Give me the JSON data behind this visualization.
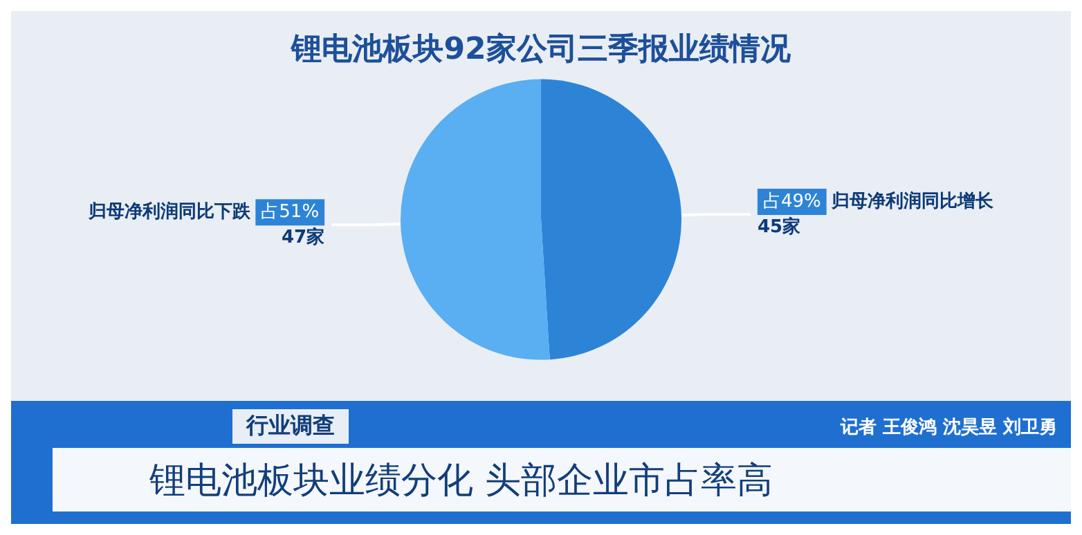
{
  "chart_data": {
    "type": "pie",
    "title": "锂电池板块92家公司三季报业绩情况",
    "categories": [
      "归母净利润同比增长\n45家",
      "归母净利润同比下跌\n47家"
    ],
    "values": [
      49,
      51
    ],
    "colors": [
      "#2d84d6",
      "#5aaef2"
    ],
    "value_labels": [
      "占49%",
      "占51%"
    ],
    "annotations": [
      "行业调查",
      "锂电池板块业绩分化 头部企业市占率高",
      "记者 王俊鸿 沈昊昱 刘卫勇"
    ]
  }
}
